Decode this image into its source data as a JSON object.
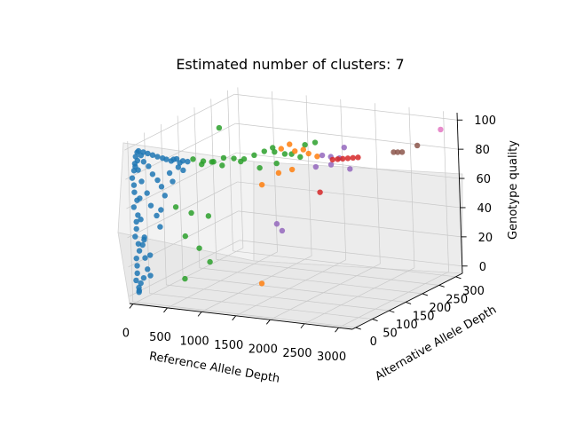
{
  "chart_data": {
    "type": "scatter",
    "projection": "3d",
    "title": "Estimated number of clusters: 7",
    "xlabel": "Reference Allele Depth",
    "ylabel": "Alternative Allele Depth",
    "zlabel": "Genotype quality",
    "xlim": [
      -50,
      3200
    ],
    "ylim": [
      -10,
      320
    ],
    "zlim": [
      -5,
      105
    ],
    "xticks": [
      0,
      500,
      1000,
      1500,
      2000,
      2500,
      3000
    ],
    "yticks": [
      0,
      50,
      100,
      150,
      200,
      250,
      300
    ],
    "zticks": [
      0,
      20,
      40,
      60,
      80,
      100
    ],
    "grid": true,
    "legend": "none",
    "series": [
      {
        "color": "#1f77b4",
        "points": [
          [
            0,
            0,
            80
          ],
          [
            20,
            2,
            85
          ],
          [
            40,
            1,
            90
          ],
          [
            10,
            3,
            70
          ],
          [
            60,
            0,
            95
          ],
          [
            5,
            1,
            60
          ],
          [
            30,
            2,
            50
          ],
          [
            15,
            0,
            40
          ],
          [
            50,
            4,
            30
          ],
          [
            25,
            1,
            20
          ],
          [
            8,
            0,
            10
          ],
          [
            35,
            2,
            5
          ],
          [
            45,
            1,
            88
          ],
          [
            70,
            3,
            92
          ],
          [
            90,
            0,
            86
          ],
          [
            12,
            2,
            75
          ],
          [
            55,
            1,
            65
          ],
          [
            65,
            0,
            55
          ],
          [
            22,
            3,
            45
          ],
          [
            48,
            2,
            35
          ],
          [
            18,
            1,
            25
          ],
          [
            28,
            0,
            15
          ],
          [
            38,
            2,
            3
          ],
          [
            100,
            1,
            99
          ],
          [
            150,
            5,
            98
          ],
          [
            200,
            8,
            97
          ],
          [
            260,
            10,
            96
          ],
          [
            320,
            12,
            95
          ],
          [
            380,
            15,
            94
          ],
          [
            420,
            18,
            93
          ],
          [
            480,
            20,
            92
          ],
          [
            540,
            15,
            94
          ],
          [
            600,
            12,
            95
          ],
          [
            120,
            3,
            78
          ],
          [
            180,
            6,
            70
          ],
          [
            240,
            4,
            62
          ],
          [
            300,
            8,
            55
          ],
          [
            360,
            5,
            48
          ],
          [
            140,
            2,
            40
          ],
          [
            90,
            6,
            34
          ],
          [
            210,
            3,
            28
          ],
          [
            160,
            4,
            18
          ],
          [
            110,
            2,
            12
          ],
          [
            60,
            3,
            8
          ],
          [
            500,
            10,
            85
          ],
          [
            560,
            6,
            80
          ],
          [
            450,
            4,
            70
          ],
          [
            390,
            3,
            60
          ],
          [
            640,
            8,
            90
          ],
          [
            700,
            10,
            88
          ],
          [
            80,
            1,
            98
          ],
          [
            130,
            2,
            96
          ],
          [
            170,
            1,
            92
          ],
          [
            230,
            3,
            89
          ],
          [
            290,
            2,
            84
          ],
          [
            350,
            4,
            80
          ],
          [
            410,
            3,
            76
          ],
          [
            75,
            5,
            66
          ],
          [
            95,
            2,
            52
          ],
          [
            125,
            4,
            38
          ],
          [
            145,
            1,
            26
          ],
          [
            205,
            3,
            14
          ],
          [
            40,
            1,
            2
          ],
          [
            660,
            9,
            93
          ],
          [
            720,
            6,
            95
          ],
          [
            760,
            12,
            94
          ]
        ]
      },
      {
        "color": "#2ca02c",
        "points": [
          [
            800,
            20,
            95
          ],
          [
            900,
            30,
            93
          ],
          [
            1000,
            40,
            92
          ],
          [
            1100,
            50,
            94
          ],
          [
            1200,
            60,
            93
          ],
          [
            1300,
            70,
            92
          ],
          [
            1400,
            80,
            94
          ],
          [
            1500,
            90,
            96
          ],
          [
            1600,
            100,
            95
          ],
          [
            1700,
            110,
            93
          ],
          [
            1750,
            120,
            92
          ],
          [
            1650,
            95,
            88
          ],
          [
            1450,
            85,
            85
          ],
          [
            1250,
            70,
            90
          ],
          [
            1050,
            55,
            88
          ],
          [
            950,
            45,
            91
          ],
          [
            850,
            35,
            90
          ],
          [
            600,
            30,
            40
          ],
          [
            700,
            50,
            30
          ],
          [
            800,
            60,
            20
          ],
          [
            500,
            25,
            60
          ],
          [
            650,
            40,
            55
          ],
          [
            1900,
            130,
            98
          ],
          [
            2000,
            140,
            99
          ],
          [
            1850,
            125,
            90
          ],
          [
            1550,
            105,
            97
          ],
          [
            900,
            80,
            110
          ],
          [
            750,
            70,
            50
          ],
          [
            550,
            35,
            10
          ]
        ]
      },
      {
        "color": "#ff7f0e",
        "points": [
          [
            1500,
            140,
            92
          ],
          [
            1650,
            150,
            90
          ],
          [
            1800,
            160,
            88
          ],
          [
            1900,
            165,
            86
          ],
          [
            1700,
            130,
            80
          ],
          [
            1550,
            120,
            78
          ],
          [
            1350,
            110,
            70
          ],
          [
            1600,
            145,
            95
          ],
          [
            1750,
            155,
            91
          ],
          [
            1400,
            90,
            5
          ]
        ]
      },
      {
        "color": "#9467bd",
        "points": [
          [
            1900,
            180,
            85
          ],
          [
            2000,
            185,
            84
          ],
          [
            2100,
            190,
            83
          ],
          [
            2050,
            175,
            80
          ],
          [
            1850,
            170,
            78
          ],
          [
            2150,
            195,
            90
          ],
          [
            2200,
            200,
            75
          ],
          [
            1400,
            140,
            40
          ],
          [
            1450,
            145,
            35
          ]
        ]
      },
      {
        "color": "#d62728",
        "points": [
          [
            1950,
            200,
            80
          ],
          [
            2000,
            205,
            80
          ],
          [
            2050,
            210,
            80
          ],
          [
            2100,
            215,
            80
          ],
          [
            2150,
            220,
            80
          ],
          [
            2200,
            225,
            80
          ],
          [
            1800,
            190,
            58
          ]
        ]
      },
      {
        "color": "#8c564b",
        "points": [
          [
            2500,
            270,
            80
          ],
          [
            2550,
            272,
            80
          ],
          [
            2600,
            275,
            80
          ],
          [
            2800,
            280,
            85
          ]
        ]
      },
      {
        "color": "#e377c2",
        "points": [
          [
            3050,
            300,
            95
          ]
        ]
      }
    ]
  }
}
